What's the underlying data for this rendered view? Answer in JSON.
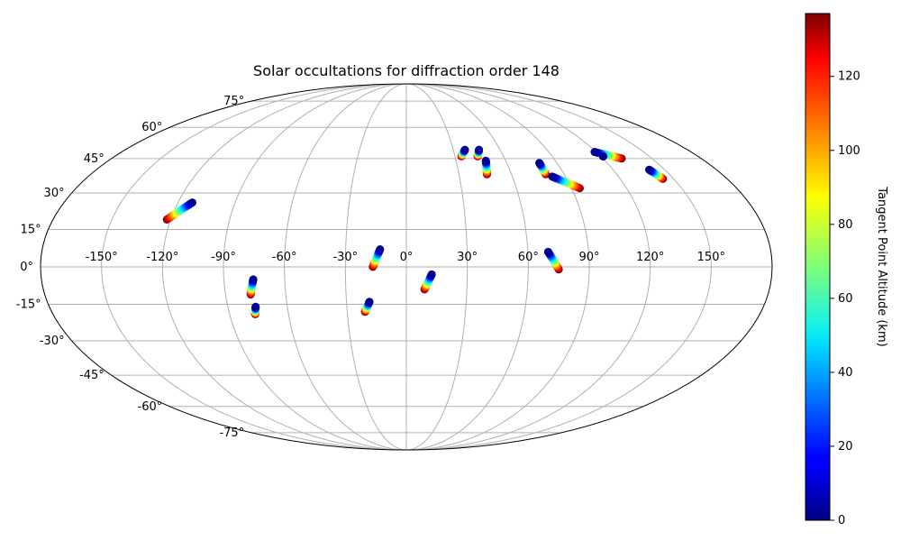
{
  "chart_data": {
    "type": "scatter",
    "projection": "mollweide",
    "title": "Solar occultations for diffraction order 148",
    "xlabel": "",
    "ylabel": "",
    "x_ticks": [
      "-150°",
      "-120°",
      "-90°",
      "-60°",
      "-30°",
      "0°",
      "30°",
      "60°",
      "90°",
      "120°",
      "150°"
    ],
    "y_ticks": [
      "75°",
      "60°",
      "45°",
      "30°",
      "15°",
      "0°",
      "-15°",
      "-30°",
      "-45°",
      "-60°",
      "-75°"
    ],
    "grid": true,
    "colorbar": {
      "label": "Tangent Point Altitude (km)",
      "colormap": "jet",
      "range": [
        0,
        137
      ],
      "ticks": [
        "0",
        "20",
        "40",
        "60",
        "80",
        "100",
        "120"
      ]
    },
    "tracks": [
      {
        "start": [
          -112.5,
          26
        ],
        "end": [
          -122,
          19
        ]
      },
      {
        "start": [
          -75.5,
          -5
        ],
        "end": [
          -77.5,
          -11
        ]
      },
      {
        "start": [
          -76,
          -16
        ],
        "end": [
          -77,
          -19
        ]
      },
      {
        "start": [
          -13,
          7
        ],
        "end": [
          -16.5,
          0
        ]
      },
      {
        "start": [
          -18.5,
          -14
        ],
        "end": [
          -21,
          -18
        ]
      },
      {
        "start": [
          12.5,
          -3
        ],
        "end": [
          9,
          -9
        ]
      },
      {
        "start": [
          37.5,
          49
        ],
        "end": [
          34,
          46
        ]
      },
      {
        "start": [
          46.5,
          49
        ],
        "end": [
          44,
          46
        ]
      },
      {
        "start": [
          48,
          44
        ],
        "end": [
          46,
          38
        ]
      },
      {
        "start": [
          79.5,
          43
        ],
        "end": [
          79.5,
          38
        ]
      },
      {
        "start": [
          70,
          6
        ],
        "end": [
          75,
          -1
        ]
      },
      {
        "start": [
          82.5,
          37
        ],
        "end": [
          94.5,
          32
        ]
      },
      {
        "start": [
          119,
          48
        ],
        "end": [
          131.5,
          45
        ]
      },
      {
        "start": [
          121.5,
          46
        ],
        "end": [
          121.5,
          46
        ]
      },
      {
        "start": [
          141,
          40
        ],
        "end": [
          144,
          36
        ]
      }
    ]
  }
}
